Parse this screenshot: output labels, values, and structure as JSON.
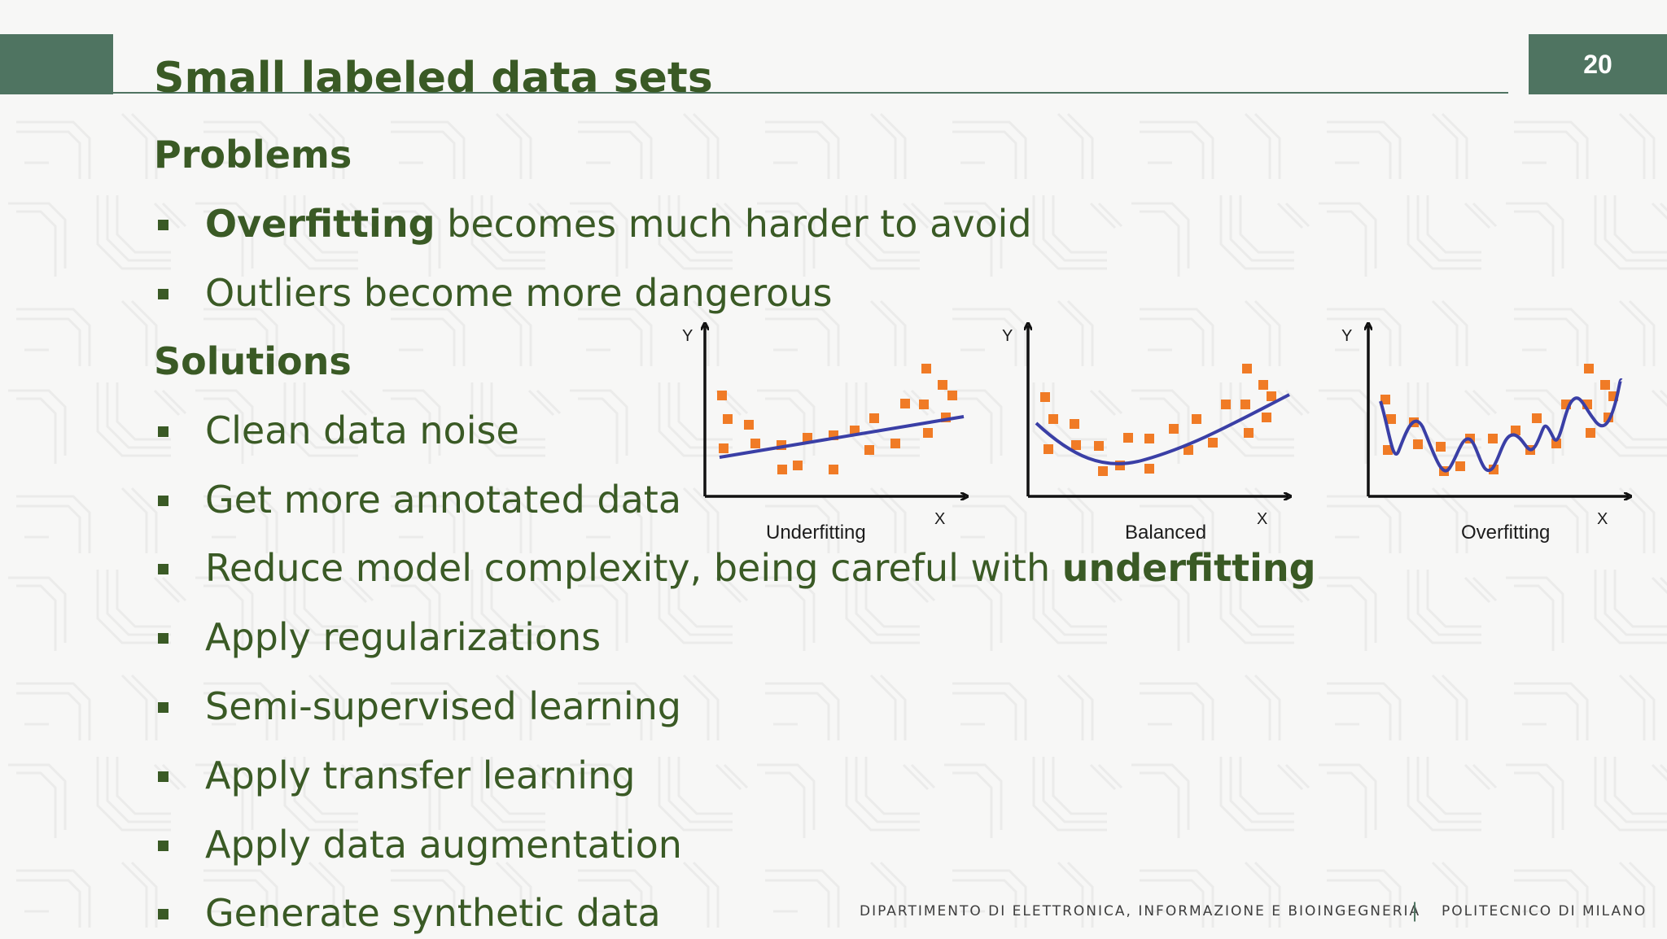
{
  "slide": {
    "title": "Small labeled data sets",
    "page_number": "20"
  },
  "problems": {
    "heading": "Problems",
    "items": [
      {
        "bold": "Overfitting",
        "text": " becomes much harder to avoid"
      },
      {
        "text": "Outliers become more dangerous"
      }
    ]
  },
  "solutions": {
    "heading": "Solutions",
    "items": [
      {
        "text": "Clean data noise"
      },
      {
        "text": "Get more annotated data"
      },
      {
        "text": "Reduce model complexity, being careful with ",
        "bold": "underfitting"
      },
      {
        "text": "Apply regularizations"
      },
      {
        "text": "Semi-supervised learning"
      },
      {
        "text": "Apply transfer learning"
      },
      {
        "text": "Apply data augmentation"
      },
      {
        "text": "Generate synthetic data"
      }
    ]
  },
  "figure": {
    "panels": [
      {
        "label": "Underfitting",
        "x_axis": "X",
        "y_axis": "Y"
      },
      {
        "label": "Balanced",
        "x_axis": "X",
        "y_axis": "Y"
      },
      {
        "label": "Overfitting",
        "x_axis": "X",
        "y_axis": "Y"
      }
    ],
    "point_color": "#f07b26",
    "curve_color": "#3a3fa6"
  },
  "footer": {
    "department": "DIPARTIMENTO DI ELETTRONICA, INFORMAZIONE E BIOINGEGNERIA",
    "separator": "|",
    "university": "POLITECNICO DI MILANO"
  },
  "colors": {
    "accent": "#4f7461",
    "text": "#3a5a25",
    "background": "#f7f7f6"
  }
}
